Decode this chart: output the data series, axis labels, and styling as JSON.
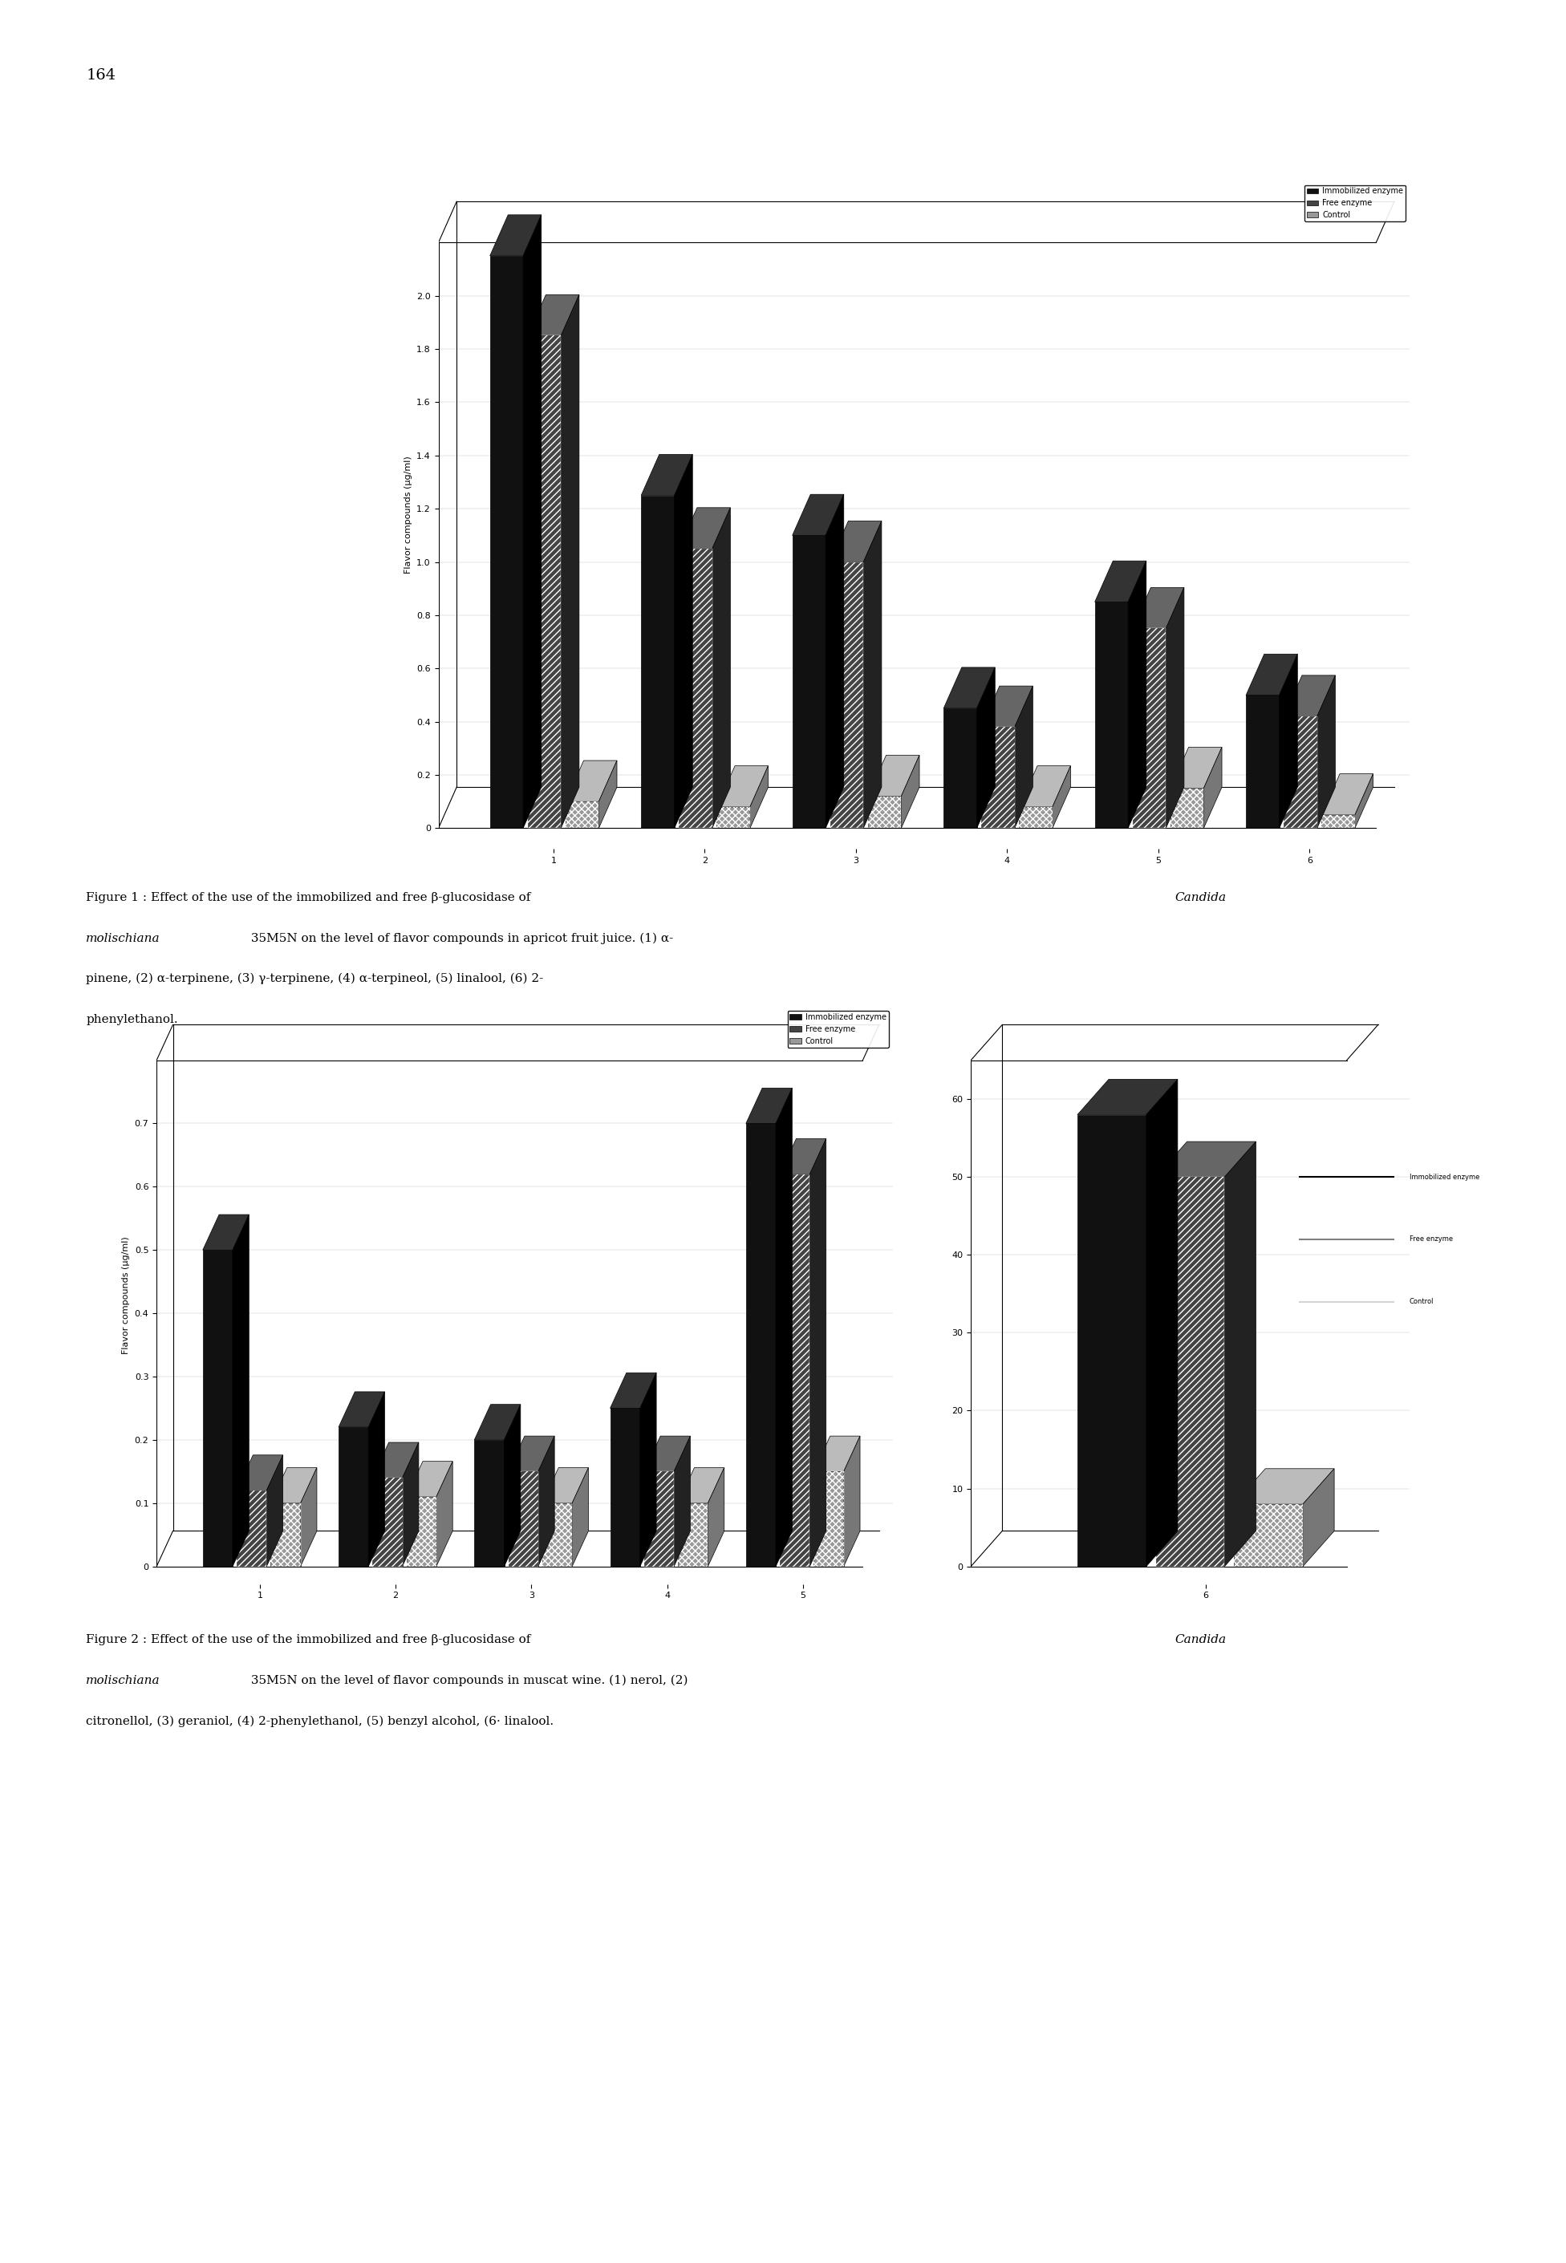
{
  "page_number": "164",
  "fig1": {
    "ylabel": "Flavor compounds (μg/ml)",
    "xlabel_categories": [
      "1",
      "2",
      "3",
      "4",
      "5",
      "6"
    ],
    "ylim": [
      0,
      2.3
    ],
    "yticks": [
      0,
      0.2,
      0.4,
      0.6,
      0.8,
      1.0,
      1.2,
      1.4,
      1.6,
      1.8,
      2.0
    ],
    "series": {
      "immobilized": [
        2.15,
        1.25,
        1.1,
        0.45,
        0.85,
        0.5
      ],
      "free": [
        1.85,
        1.05,
        1.0,
        0.38,
        0.75,
        0.42
      ],
      "control": [
        0.1,
        0.08,
        0.12,
        0.08,
        0.15,
        0.05
      ]
    },
    "legend": [
      "Immobilized enzyme",
      "Free enzyme",
      "Control"
    ]
  },
  "fig2": {
    "ylabel": "Flavor compounds (μg/ml)",
    "xlabel_categories_left": [
      "1",
      "2",
      "3",
      "4",
      "5"
    ],
    "xlabel_categories_right": [
      "6"
    ],
    "ylim_left": [
      0,
      0.8
    ],
    "yticks_left": [
      0,
      0.1,
      0.2,
      0.3,
      0.4,
      0.5,
      0.6,
      0.7
    ],
    "ylim_right": [
      0,
      65
    ],
    "yticks_right": [
      0,
      10,
      20,
      30,
      40,
      50,
      60
    ],
    "series_left": {
      "immobilized": [
        0.5,
        0.22,
        0.2,
        0.25,
        0.7
      ],
      "free": [
        0.12,
        0.14,
        0.15,
        0.15,
        0.62
      ],
      "control": [
        0.1,
        0.11,
        0.1,
        0.1,
        0.15
      ]
    },
    "series_right": {
      "immobilized": [
        58.0
      ],
      "free": [
        50.0
      ],
      "control": [
        8.0
      ]
    },
    "legend": [
      "Immobilized enzyme",
      "Free enzyme",
      "Control"
    ]
  },
  "caption1_lines": [
    "Figure 1 : Effect of the use of the immobilized and free β-glucosidase of Candida",
    "molischiana 35M5N on the level of flavor compounds in apricot fruit juice. (1) α-",
    "pinene, (2) α-terpinene, (3) γ-terpinene, (4) α-terpineol, (5) linalool, (6) 2-",
    "phenylethanol."
  ],
  "caption2_lines": [
    "Figure 2 : Effect of the use of the immobilized and free β-glucosidase of Candida",
    "molischiana 35M5N on the level of flavor compounds in muscat wine. (1) nerol, (2)",
    "citronellol, (3) geraniol, (4) 2-phenylethanol, (5) benzyl alcohol, (6· linalool."
  ],
  "background_color": "#ffffff",
  "text_color": "#000000"
}
